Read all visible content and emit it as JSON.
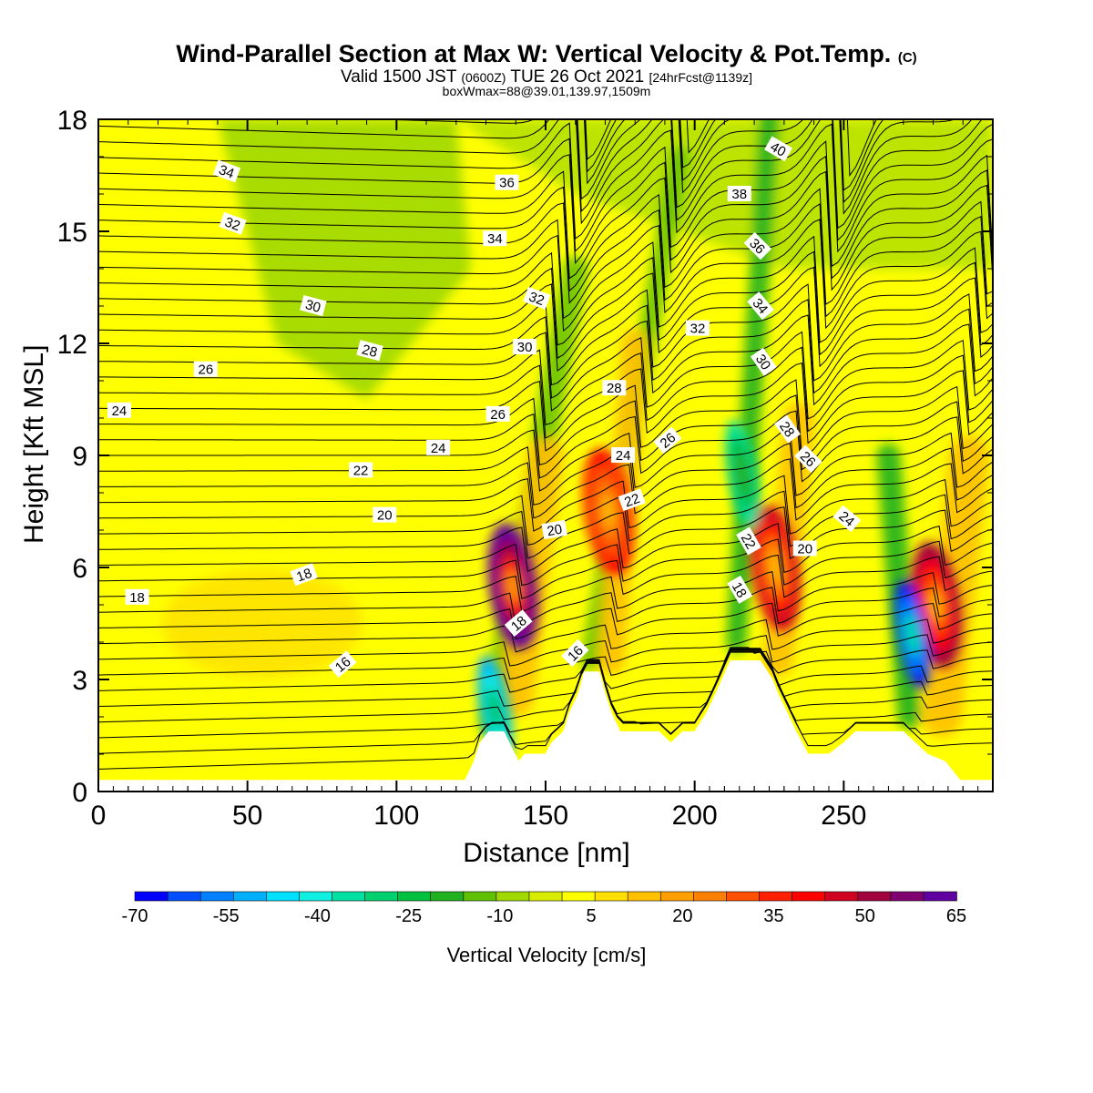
{
  "chart_data": {
    "type": "heatmap",
    "title": {
      "main": "Wind-Parallel Section at Max W: Vertical Velocity & Pot.Temp.",
      "main_suffix": "(C)",
      "line2_a": "Valid 1500 JST",
      "line2_b": "(0600Z)",
      "line2_c": "TUE 26 Oct 2021",
      "line2_d": "[24hrFcst@1139z]",
      "line3": "boxWmax=88@39.01,139.97,1509m"
    },
    "xlabel": "Distance [nm]",
    "ylabel": "Height [Kft MSL]",
    "xlim": [
      0,
      300
    ],
    "ylim": [
      0,
      18
    ],
    "xticks": [
      0,
      50,
      100,
      150,
      200,
      250
    ],
    "yticks": [
      0,
      3,
      6,
      9,
      12,
      15,
      18
    ],
    "colorbar": {
      "label": "Vertical Velocity [cm/s]",
      "tick_labels": [
        "-70",
        "-55",
        "-40",
        "-25",
        "-10",
        "5",
        "20",
        "35",
        "50",
        "65"
      ],
      "tick_values": [
        -70,
        -55,
        -40,
        -25,
        -10,
        5,
        20,
        35,
        50,
        65
      ],
      "colors": [
        "#0000ff",
        "#0050ff",
        "#0080ff",
        "#00b0ff",
        "#00e0ff",
        "#10f0e0",
        "#00e0a0",
        "#00d070",
        "#00c040",
        "#20b020",
        "#60c000",
        "#a0d800",
        "#d8ec00",
        "#ffff00",
        "#ffe000",
        "#ffc000",
        "#ffa000",
        "#ff8000",
        "#ff5000",
        "#ff2000",
        "#ff0000",
        "#d00020",
        "#a00040",
        "#800070",
        "#6000a0"
      ]
    },
    "terrain_nm_kft": [
      [
        0,
        0.3
      ],
      [
        123,
        0.3
      ],
      [
        126,
        0.8
      ],
      [
        128,
        1.3
      ],
      [
        131,
        1.6
      ],
      [
        136,
        1.6
      ],
      [
        139,
        1.1
      ],
      [
        141,
        0.8
      ],
      [
        143,
        1.0
      ],
      [
        150,
        1.0
      ],
      [
        152,
        1.3
      ],
      [
        156,
        1.6
      ],
      [
        158,
        2.1
      ],
      [
        161,
        2.6
      ],
      [
        163,
        3.2
      ],
      [
        168,
        3.2
      ],
      [
        170,
        2.6
      ],
      [
        172,
        2.1
      ],
      [
        175,
        1.6
      ],
      [
        181,
        1.6
      ],
      [
        188,
        1.6
      ],
      [
        192,
        1.3
      ],
      [
        196,
        1.6
      ],
      [
        200,
        1.6
      ],
      [
        204,
        2.1
      ],
      [
        207,
        2.6
      ],
      [
        212,
        3.5
      ],
      [
        222,
        3.5
      ],
      [
        226,
        3.0
      ],
      [
        228,
        2.6
      ],
      [
        231,
        2.1
      ],
      [
        234,
        1.6
      ],
      [
        236,
        1.3
      ],
      [
        238,
        1.0
      ],
      [
        245,
        1.0
      ],
      [
        250,
        1.3
      ],
      [
        254,
        1.6
      ],
      [
        266,
        1.6
      ],
      [
        270,
        1.6
      ],
      [
        274,
        1.3
      ],
      [
        278,
        1.0
      ],
      [
        284,
        0.8
      ],
      [
        286,
        0.6
      ],
      [
        289,
        0.3
      ],
      [
        300,
        0.3
      ]
    ],
    "updraft_cores": [
      {
        "x_nm": 139,
        "z_kft": 5.5,
        "w_cms": 65
      },
      {
        "x_nm": 171,
        "z_kft": 7.5,
        "w_cms": 35
      },
      {
        "x_nm": 227,
        "z_kft": 6.0,
        "w_cms": 40
      },
      {
        "x_nm": 281,
        "z_kft": 5.0,
        "w_cms": 45
      }
    ],
    "downdraft_cores": [
      {
        "x_nm": 133,
        "z_kft": 2.2,
        "w_cms": -45
      },
      {
        "x_nm": 273,
        "z_kft": 4.2,
        "w_cms": -70
      },
      {
        "x_nm": 216,
        "z_kft": 8.5,
        "w_cms": -25
      }
    ],
    "theta_contour_labels": [
      {
        "text": "34",
        "x_nm": 43,
        "z_kft": 16.6,
        "rot": 20
      },
      {
        "text": "32",
        "x_nm": 45,
        "z_kft": 15.2,
        "rot": 20
      },
      {
        "text": "30",
        "x_nm": 72,
        "z_kft": 13.0,
        "rot": 15
      },
      {
        "text": "28",
        "x_nm": 91,
        "z_kft": 11.8,
        "rot": 15
      },
      {
        "text": "26",
        "x_nm": 36,
        "z_kft": 11.3,
        "rot": 0
      },
      {
        "text": "24",
        "x_nm": 7,
        "z_kft": 10.2,
        "rot": 0
      },
      {
        "text": "24",
        "x_nm": 114,
        "z_kft": 9.2,
        "rot": 0
      },
      {
        "text": "22",
        "x_nm": 88,
        "z_kft": 8.6,
        "rot": 0
      },
      {
        "text": "20",
        "x_nm": 96,
        "z_kft": 7.4,
        "rot": 0
      },
      {
        "text": "18",
        "x_nm": 69,
        "z_kft": 5.8,
        "rot": -20
      },
      {
        "text": "18",
        "x_nm": 13,
        "z_kft": 5.2,
        "rot": 0
      },
      {
        "text": "16",
        "x_nm": 82,
        "z_kft": 3.4,
        "rot": -40
      },
      {
        "text": "36",
        "x_nm": 137,
        "z_kft": 16.3,
        "rot": 0
      },
      {
        "text": "34",
        "x_nm": 133,
        "z_kft": 14.8,
        "rot": 0
      },
      {
        "text": "32",
        "x_nm": 147,
        "z_kft": 13.2,
        "rot": 20
      },
      {
        "text": "30",
        "x_nm": 143,
        "z_kft": 11.9,
        "rot": 0
      },
      {
        "text": "26",
        "x_nm": 134,
        "z_kft": 10.1,
        "rot": 0
      },
      {
        "text": "20",
        "x_nm": 153,
        "z_kft": 7.0,
        "rot": -10
      },
      {
        "text": "18",
        "x_nm": 141,
        "z_kft": 4.5,
        "rot": -40
      },
      {
        "text": "16",
        "x_nm": 160,
        "z_kft": 3.7,
        "rot": -45
      },
      {
        "text": "28",
        "x_nm": 173,
        "z_kft": 10.8,
        "rot": 0
      },
      {
        "text": "24",
        "x_nm": 176,
        "z_kft": 9.0,
        "rot": 0
      },
      {
        "text": "22",
        "x_nm": 179,
        "z_kft": 7.8,
        "rot": -20
      },
      {
        "text": "26",
        "x_nm": 191,
        "z_kft": 9.4,
        "rot": -40
      },
      {
        "text": "32",
        "x_nm": 201,
        "z_kft": 12.4,
        "rot": 0
      },
      {
        "text": "38",
        "x_nm": 215,
        "z_kft": 16.0,
        "rot": 0
      },
      {
        "text": "40",
        "x_nm": 228,
        "z_kft": 17.2,
        "rot": 30
      },
      {
        "text": "36",
        "x_nm": 221,
        "z_kft": 14.6,
        "rot": 45
      },
      {
        "text": "34",
        "x_nm": 222,
        "z_kft": 13.0,
        "rot": 50
      },
      {
        "text": "30",
        "x_nm": 223,
        "z_kft": 11.5,
        "rot": 55
      },
      {
        "text": "28",
        "x_nm": 231,
        "z_kft": 9.7,
        "rot": 55
      },
      {
        "text": "26",
        "x_nm": 238,
        "z_kft": 8.9,
        "rot": 45
      },
      {
        "text": "24",
        "x_nm": 251,
        "z_kft": 7.3,
        "rot": 40
      },
      {
        "text": "22",
        "x_nm": 218,
        "z_kft": 6.7,
        "rot": 60
      },
      {
        "text": "20",
        "x_nm": 237,
        "z_kft": 6.5,
        "rot": 0
      },
      {
        "text": "18",
        "x_nm": 215,
        "z_kft": 5.4,
        "rot": 60
      }
    ]
  }
}
